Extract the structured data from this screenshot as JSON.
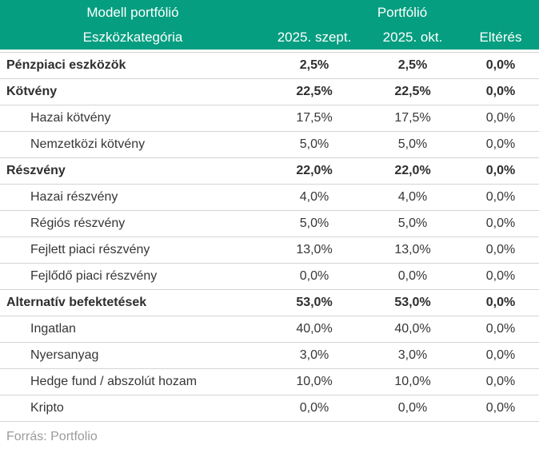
{
  "chart_data": {
    "type": "table",
    "title_left": "Modell portfólió",
    "title_right": "Portfólió",
    "columns": [
      "Eszközkategória",
      "2025. szept.",
      "2025. okt.",
      "Eltérés"
    ],
    "rows": [
      {
        "category": "Pénzpiaci eszközök",
        "is_group": true,
        "sept_2025": "2,5%",
        "okt_2025": "2,5%",
        "elteres": "0,0%"
      },
      {
        "category": "Kötvény",
        "is_group": true,
        "sept_2025": "22,5%",
        "okt_2025": "22,5%",
        "elteres": "0,0%"
      },
      {
        "category": "Hazai kötvény",
        "is_group": false,
        "sept_2025": "17,5%",
        "okt_2025": "17,5%",
        "elteres": "0,0%"
      },
      {
        "category": "Nemzetközi kötvény",
        "is_group": false,
        "sept_2025": "5,0%",
        "okt_2025": "5,0%",
        "elteres": "0,0%"
      },
      {
        "category": "Részvény",
        "is_group": true,
        "sept_2025": "22,0%",
        "okt_2025": "22,0%",
        "elteres": "0,0%"
      },
      {
        "category": "Hazai részvény",
        "is_group": false,
        "sept_2025": "4,0%",
        "okt_2025": "4,0%",
        "elteres": "0,0%"
      },
      {
        "category": "Régiós részvény",
        "is_group": false,
        "sept_2025": "5,0%",
        "okt_2025": "5,0%",
        "elteres": "0,0%"
      },
      {
        "category": "Fejlett piaci részvény",
        "is_group": false,
        "sept_2025": "13,0%",
        "okt_2025": "13,0%",
        "elteres": "0,0%"
      },
      {
        "category": "Fejlődő piaci részvény",
        "is_group": false,
        "sept_2025": "0,0%",
        "okt_2025": "0,0%",
        "elteres": "0,0%"
      },
      {
        "category": "Alternatív befektetések",
        "is_group": true,
        "sept_2025": "53,0%",
        "okt_2025": "53,0%",
        "elteres": "0,0%"
      },
      {
        "category": "Ingatlan",
        "is_group": false,
        "sept_2025": "40,0%",
        "okt_2025": "40,0%",
        "elteres": "0,0%"
      },
      {
        "category": "Nyersanyag",
        "is_group": false,
        "sept_2025": "3,0%",
        "okt_2025": "3,0%",
        "elteres": "0,0%"
      },
      {
        "category": "Hedge fund / abszolút hozam",
        "is_group": false,
        "sept_2025": "10,0%",
        "okt_2025": "10,0%",
        "elteres": "0,0%"
      },
      {
        "category": "Kripto",
        "is_group": false,
        "sept_2025": "0,0%",
        "okt_2025": "0,0%",
        "elteres": "0,0%"
      }
    ],
    "source": "Forrás: Portfolio"
  },
  "colors": {
    "header_bg": "#059e80",
    "header_text": "#ffffff",
    "body_text": "#363636",
    "group_text": "#2e2e2e",
    "row_border": "#d4d4d4",
    "source_text": "#9b9b9b",
    "background": "#ffffff"
  }
}
